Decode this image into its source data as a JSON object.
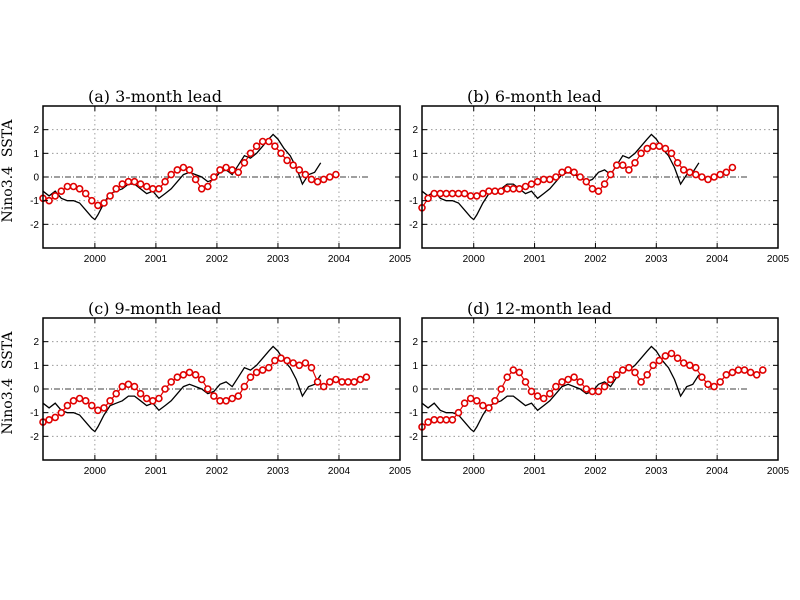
{
  "chart_data": [
    {
      "type": "line",
      "title": "(a) 3-month lead",
      "ylabel": "Nino3.4  SSTA",
      "xlim": [
        1999.15,
        2005.0
      ],
      "ylim": [
        -3,
        3
      ],
      "xticks": [
        2000,
        2001,
        2002,
        2003,
        2004,
        2005
      ],
      "yticks": [
        -2,
        -1,
        0,
        1,
        2
      ],
      "grid": true,
      "series": [
        {
          "role": "observed",
          "color": "#000000",
          "x": [
            1999.15,
            1999.25,
            1999.35,
            1999.45,
            1999.55,
            1999.65,
            1999.75,
            1999.85,
            1999.95,
            2000.0,
            2000.05,
            2000.15,
            2000.25,
            2000.35,
            2000.45,
            2000.55,
            2000.65,
            2000.75,
            2000.85,
            2000.95,
            2001.05,
            2001.15,
            2001.25,
            2001.35,
            2001.45,
            2001.55,
            2001.65,
            2001.75,
            2001.85,
            2001.95,
            2002.05,
            2002.15,
            2002.25,
            2002.35,
            2002.45,
            2002.55,
            2002.65,
            2002.75,
            2002.85,
            2002.92,
            2003.0,
            2003.1,
            2003.2,
            2003.3,
            2003.4,
            2003.5,
            2003.6,
            2003.7
          ],
          "y": [
            -0.6,
            -0.8,
            -0.6,
            -0.9,
            -1.0,
            -1.0,
            -1.1,
            -1.4,
            -1.7,
            -1.8,
            -1.6,
            -1.1,
            -0.7,
            -0.6,
            -0.5,
            -0.3,
            -0.3,
            -0.5,
            -0.7,
            -0.6,
            -0.9,
            -0.7,
            -0.5,
            -0.2,
            0.1,
            0.2,
            0.1,
            0.0,
            -0.2,
            -0.1,
            0.2,
            0.3,
            0.1,
            0.5,
            0.9,
            0.8,
            1.0,
            1.3,
            1.6,
            1.8,
            1.6,
            1.2,
            0.9,
            0.4,
            -0.3,
            0.1,
            0.2,
            0.6
          ]
        },
        {
          "role": "forecast",
          "color": "#e00000",
          "x": [
            1999.15,
            1999.25,
            1999.35,
            1999.45,
            1999.55,
            1999.65,
            1999.75,
            1999.85,
            1999.95,
            2000.05,
            2000.15,
            2000.25,
            2000.35,
            2000.45,
            2000.55,
            2000.65,
            2000.75,
            2000.85,
            2000.95,
            2001.05,
            2001.15,
            2001.25,
            2001.35,
            2001.45,
            2001.55,
            2001.65,
            2001.75,
            2001.85,
            2001.95,
            2002.05,
            2002.15,
            2002.25,
            2002.35,
            2002.45,
            2002.55,
            2002.65,
            2002.75,
            2002.85,
            2002.95,
            2003.05,
            2003.15,
            2003.25,
            2003.35,
            2003.45,
            2003.55,
            2003.65,
            2003.75,
            2003.85,
            2003.95
          ],
          "y": [
            -0.9,
            -1.0,
            -0.8,
            -0.6,
            -0.4,
            -0.4,
            -0.5,
            -0.7,
            -1.0,
            -1.2,
            -1.1,
            -0.8,
            -0.5,
            -0.3,
            -0.2,
            -0.2,
            -0.3,
            -0.4,
            -0.5,
            -0.5,
            -0.2,
            0.1,
            0.3,
            0.4,
            0.3,
            -0.1,
            -0.5,
            -0.4,
            0.0,
            0.3,
            0.4,
            0.3,
            0.2,
            0.6,
            1.0,
            1.3,
            1.5,
            1.5,
            1.3,
            1.0,
            0.7,
            0.5,
            0.3,
            0.1,
            -0.1,
            -0.2,
            -0.1,
            0.0,
            0.1
          ]
        }
      ]
    },
    {
      "type": "line",
      "title": "(b) 6-month lead",
      "ylabel": "",
      "xlim": [
        1999.15,
        2005.0
      ],
      "ylim": [
        -3,
        3
      ],
      "xticks": [
        2000,
        2001,
        2002,
        2003,
        2004,
        2005
      ],
      "yticks": [
        -2,
        -1,
        0,
        1,
        2
      ],
      "grid": true,
      "series": [
        {
          "role": "observed",
          "color": "#000000",
          "x": [
            1999.15,
            1999.25,
            1999.35,
            1999.45,
            1999.55,
            1999.65,
            1999.75,
            1999.85,
            1999.95,
            2000.0,
            2000.05,
            2000.15,
            2000.25,
            2000.35,
            2000.45,
            2000.55,
            2000.65,
            2000.75,
            2000.85,
            2000.95,
            2001.05,
            2001.15,
            2001.25,
            2001.35,
            2001.45,
            2001.55,
            2001.65,
            2001.75,
            2001.85,
            2001.95,
            2002.05,
            2002.15,
            2002.25,
            2002.35,
            2002.45,
            2002.55,
            2002.65,
            2002.75,
            2002.85,
            2002.92,
            2003.0,
            2003.1,
            2003.2,
            2003.3,
            2003.4,
            2003.5,
            2003.6,
            2003.7
          ],
          "y": [
            -0.6,
            -0.8,
            -0.6,
            -0.9,
            -1.0,
            -1.0,
            -1.1,
            -1.4,
            -1.7,
            -1.8,
            -1.6,
            -1.1,
            -0.7,
            -0.6,
            -0.5,
            -0.3,
            -0.3,
            -0.5,
            -0.7,
            -0.6,
            -0.9,
            -0.7,
            -0.5,
            -0.2,
            0.1,
            0.2,
            0.1,
            0.0,
            -0.2,
            -0.1,
            0.2,
            0.3,
            0.1,
            0.5,
            0.9,
            0.8,
            1.0,
            1.3,
            1.6,
            1.8,
            1.6,
            1.2,
            0.9,
            0.4,
            -0.3,
            0.1,
            0.2,
            0.6
          ]
        },
        {
          "role": "forecast",
          "color": "#e00000",
          "x": [
            1999.15,
            1999.25,
            1999.35,
            1999.45,
            1999.55,
            1999.65,
            1999.75,
            1999.85,
            1999.95,
            2000.05,
            2000.15,
            2000.25,
            2000.35,
            2000.45,
            2000.55,
            2000.65,
            2000.75,
            2000.85,
            2000.95,
            2001.05,
            2001.15,
            2001.25,
            2001.35,
            2001.45,
            2001.55,
            2001.65,
            2001.75,
            2001.85,
            2001.95,
            2002.05,
            2002.15,
            2002.25,
            2002.35,
            2002.45,
            2002.55,
            2002.65,
            2002.75,
            2002.85,
            2002.95,
            2003.05,
            2003.15,
            2003.25,
            2003.35,
            2003.45,
            2003.55,
            2003.65,
            2003.75,
            2003.85,
            2003.95,
            2004.05,
            2004.15,
            2004.25
          ],
          "y": [
            -1.3,
            -0.9,
            -0.7,
            -0.7,
            -0.7,
            -0.7,
            -0.7,
            -0.7,
            -0.8,
            -0.8,
            -0.7,
            -0.6,
            -0.6,
            -0.6,
            -0.5,
            -0.5,
            -0.5,
            -0.4,
            -0.3,
            -0.2,
            -0.1,
            -0.1,
            0.0,
            0.2,
            0.3,
            0.2,
            0.0,
            -0.2,
            -0.5,
            -0.6,
            -0.3,
            0.1,
            0.5,
            0.5,
            0.3,
            0.6,
            1.0,
            1.2,
            1.3,
            1.3,
            1.2,
            1.0,
            0.6,
            0.3,
            0.2,
            0.1,
            0.0,
            -0.1,
            0.0,
            0.1,
            0.2,
            0.4
          ]
        }
      ]
    },
    {
      "type": "line",
      "title": "(c) 9-month lead",
      "ylabel": "Nino3.4  SSTA",
      "xlim": [
        1999.15,
        2005.0
      ],
      "ylim": [
        -3,
        3
      ],
      "xticks": [
        2000,
        2001,
        2002,
        2003,
        2004,
        2005
      ],
      "yticks": [
        -2,
        -1,
        0,
        1,
        2
      ],
      "grid": true,
      "series": [
        {
          "role": "observed",
          "color": "#000000",
          "x": [
            1999.15,
            1999.25,
            1999.35,
            1999.45,
            1999.55,
            1999.65,
            1999.75,
            1999.85,
            1999.95,
            2000.0,
            2000.05,
            2000.15,
            2000.25,
            2000.35,
            2000.45,
            2000.55,
            2000.65,
            2000.75,
            2000.85,
            2000.95,
            2001.05,
            2001.15,
            2001.25,
            2001.35,
            2001.45,
            2001.55,
            2001.65,
            2001.75,
            2001.85,
            2001.95,
            2002.05,
            2002.15,
            2002.25,
            2002.35,
            2002.45,
            2002.55,
            2002.65,
            2002.75,
            2002.85,
            2002.92,
            2003.0,
            2003.1,
            2003.2,
            2003.3,
            2003.4,
            2003.5,
            2003.6,
            2003.7
          ],
          "y": [
            -0.6,
            -0.8,
            -0.6,
            -0.9,
            -1.0,
            -1.0,
            -1.1,
            -1.4,
            -1.7,
            -1.8,
            -1.6,
            -1.1,
            -0.7,
            -0.6,
            -0.5,
            -0.3,
            -0.3,
            -0.5,
            -0.7,
            -0.6,
            -0.9,
            -0.7,
            -0.5,
            -0.2,
            0.1,
            0.2,
            0.1,
            0.0,
            -0.2,
            -0.1,
            0.2,
            0.3,
            0.1,
            0.5,
            0.9,
            0.8,
            1.0,
            1.3,
            1.6,
            1.8,
            1.6,
            1.2,
            0.9,
            0.4,
            -0.3,
            0.1,
            0.2,
            0.6
          ]
        },
        {
          "role": "forecast",
          "color": "#e00000",
          "x": [
            1999.15,
            1999.25,
            1999.35,
            1999.45,
            1999.55,
            1999.65,
            1999.75,
            1999.85,
            1999.95,
            2000.05,
            2000.15,
            2000.25,
            2000.35,
            2000.45,
            2000.55,
            2000.65,
            2000.75,
            2000.85,
            2000.95,
            2001.05,
            2001.15,
            2001.25,
            2001.35,
            2001.45,
            2001.55,
            2001.65,
            2001.75,
            2001.85,
            2001.95,
            2002.05,
            2002.15,
            2002.25,
            2002.35,
            2002.45,
            2002.55,
            2002.65,
            2002.75,
            2002.85,
            2002.95,
            2003.05,
            2003.15,
            2003.25,
            2003.35,
            2003.45,
            2003.55,
            2003.65,
            2003.75,
            2003.85,
            2003.95,
            2004.05,
            2004.15,
            2004.25,
            2004.35,
            2004.45
          ],
          "y": [
            -1.4,
            -1.3,
            -1.2,
            -1.0,
            -0.7,
            -0.5,
            -0.4,
            -0.5,
            -0.7,
            -0.9,
            -0.8,
            -0.5,
            -0.2,
            0.1,
            0.2,
            0.1,
            -0.2,
            -0.4,
            -0.5,
            -0.4,
            0.0,
            0.3,
            0.5,
            0.6,
            0.7,
            0.6,
            0.4,
            0.0,
            -0.3,
            -0.5,
            -0.5,
            -0.4,
            -0.3,
            0.1,
            0.5,
            0.7,
            0.8,
            0.9,
            1.2,
            1.3,
            1.2,
            1.1,
            1.0,
            1.1,
            0.9,
            0.3,
            0.1,
            0.3,
            0.4,
            0.3,
            0.3,
            0.3,
            0.4,
            0.5
          ]
        }
      ]
    },
    {
      "type": "line",
      "title": "(d) 12-month lead",
      "ylabel": "",
      "xlim": [
        1999.15,
        2005.0
      ],
      "ylim": [
        -3,
        3
      ],
      "xticks": [
        2000,
        2001,
        2002,
        2003,
        2004,
        2005
      ],
      "yticks": [
        -2,
        -1,
        0,
        1,
        2
      ],
      "grid": true,
      "series": [
        {
          "role": "observed",
          "color": "#000000",
          "x": [
            1999.15,
            1999.25,
            1999.35,
            1999.45,
            1999.55,
            1999.65,
            1999.75,
            1999.85,
            1999.95,
            2000.0,
            2000.05,
            2000.15,
            2000.25,
            2000.35,
            2000.45,
            2000.55,
            2000.65,
            2000.75,
            2000.85,
            2000.95,
            2001.05,
            2001.15,
            2001.25,
            2001.35,
            2001.45,
            2001.55,
            2001.65,
            2001.75,
            2001.85,
            2001.95,
            2002.05,
            2002.15,
            2002.25,
            2002.35,
            2002.45,
            2002.55,
            2002.65,
            2002.75,
            2002.85,
            2002.92,
            2003.0,
            2003.1,
            2003.2,
            2003.3,
            2003.4,
            2003.5,
            2003.6,
            2003.7
          ],
          "y": [
            -0.6,
            -0.8,
            -0.6,
            -0.9,
            -1.0,
            -1.0,
            -1.1,
            -1.4,
            -1.7,
            -1.8,
            -1.6,
            -1.1,
            -0.7,
            -0.6,
            -0.5,
            -0.3,
            -0.3,
            -0.5,
            -0.7,
            -0.6,
            -0.9,
            -0.7,
            -0.5,
            -0.2,
            0.1,
            0.2,
            0.1,
            0.0,
            -0.2,
            -0.1,
            0.2,
            0.3,
            0.1,
            0.5,
            0.9,
            0.8,
            1.0,
            1.3,
            1.6,
            1.8,
            1.6,
            1.2,
            0.9,
            0.4,
            -0.3,
            0.1,
            0.2,
            0.6
          ]
        },
        {
          "role": "forecast",
          "color": "#e00000",
          "x": [
            1999.15,
            1999.25,
            1999.35,
            1999.45,
            1999.55,
            1999.65,
            1999.75,
            1999.85,
            1999.95,
            2000.05,
            2000.15,
            2000.25,
            2000.35,
            2000.45,
            2000.55,
            2000.65,
            2000.75,
            2000.85,
            2000.95,
            2001.05,
            2001.15,
            2001.25,
            2001.35,
            2001.45,
            2001.55,
            2001.65,
            2001.75,
            2001.85,
            2001.95,
            2002.05,
            2002.15,
            2002.25,
            2002.35,
            2002.45,
            2002.55,
            2002.65,
            2002.75,
            2002.85,
            2002.95,
            2003.05,
            2003.15,
            2003.25,
            2003.35,
            2003.45,
            2003.55,
            2003.65,
            2003.75,
            2003.85,
            2003.95,
            2004.05,
            2004.15,
            2004.25,
            2004.35,
            2004.45,
            2004.55,
            2004.65,
            2004.75
          ],
          "y": [
            -1.6,
            -1.4,
            -1.3,
            -1.3,
            -1.3,
            -1.3,
            -1.0,
            -0.6,
            -0.4,
            -0.5,
            -0.7,
            -0.8,
            -0.5,
            0.0,
            0.5,
            0.8,
            0.7,
            0.3,
            -0.1,
            -0.3,
            -0.4,
            -0.2,
            0.1,
            0.3,
            0.4,
            0.5,
            0.3,
            0.0,
            -0.1,
            -0.1,
            0.1,
            0.4,
            0.6,
            0.8,
            0.9,
            0.7,
            0.3,
            0.6,
            1.0,
            1.2,
            1.4,
            1.5,
            1.3,
            1.1,
            1.0,
            0.9,
            0.5,
            0.2,
            0.1,
            0.3,
            0.6,
            0.7,
            0.8,
            0.8,
            0.7,
            0.6,
            0.8
          ]
        }
      ]
    }
  ]
}
